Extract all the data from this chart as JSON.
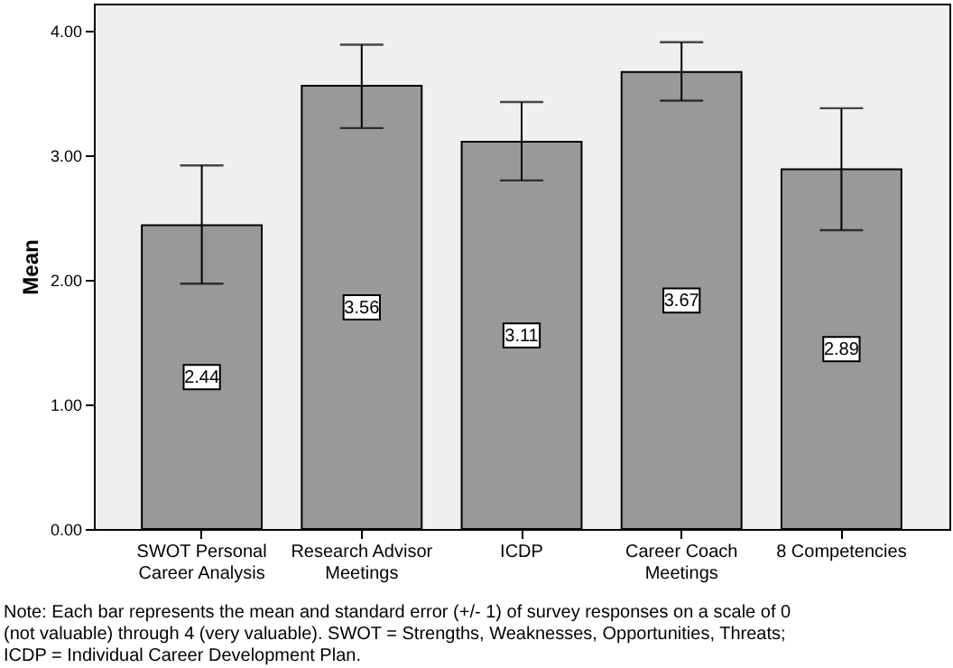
{
  "chart_data": {
    "type": "bar",
    "categories": [
      "SWOT Personal Career Analysis",
      "Research Advisor Meetings",
      "ICDP",
      "Career Coach Meetings",
      "8 Competencies"
    ],
    "values": [
      2.44,
      3.56,
      3.11,
      3.67,
      2.89
    ],
    "errors": [
      [
        1.97,
        2.92
      ],
      [
        3.22,
        3.89
      ],
      [
        2.8,
        3.43
      ],
      [
        3.44,
        3.91
      ],
      [
        2.4,
        3.38
      ]
    ],
    "color": "#999999",
    "ylabel": "Mean",
    "ylim": [
      0,
      4.22
    ],
    "yticks": [
      {
        "value": 0,
        "label": "0.00"
      },
      {
        "value": 1,
        "label": "1.00"
      },
      {
        "value": 2,
        "label": "2.00"
      },
      {
        "value": 3,
        "label": "3.00"
      },
      {
        "value": 4,
        "label": "4.00"
      }
    ],
    "data_labels": true,
    "annotations": [
      "Note: Each bar represents the mean and standard error (+/- 1) of survey responses on a scale of 0 (not valuable) through 4 (very valuable). SWOT = Strengths, Weaknesses, Opportunities, Threats; ICDP = Individual Career Development Plan."
    ]
  }
}
